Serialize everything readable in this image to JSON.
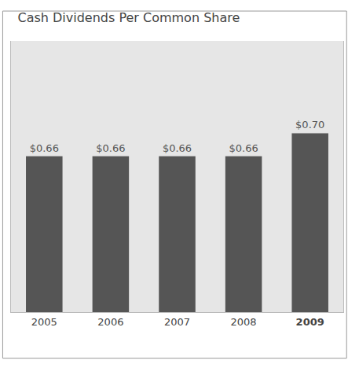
{
  "chart_data": {
    "type": "bar",
    "title": "Cash Dividends Per Common Share",
    "categories": [
      "2005",
      "2006",
      "2007",
      "2008",
      "2009"
    ],
    "values": [
      0.66,
      0.66,
      0.66,
      0.66,
      0.7
    ],
    "value_labels": [
      "$0.66",
      "$0.66",
      "$0.66",
      "$0.66",
      "$0.70"
    ],
    "color": "#555555",
    "ylim": [
      0.39,
      0.86
    ],
    "yticks": [],
    "data_labels": true,
    "tick_labels": "x",
    "grid": false
  }
}
